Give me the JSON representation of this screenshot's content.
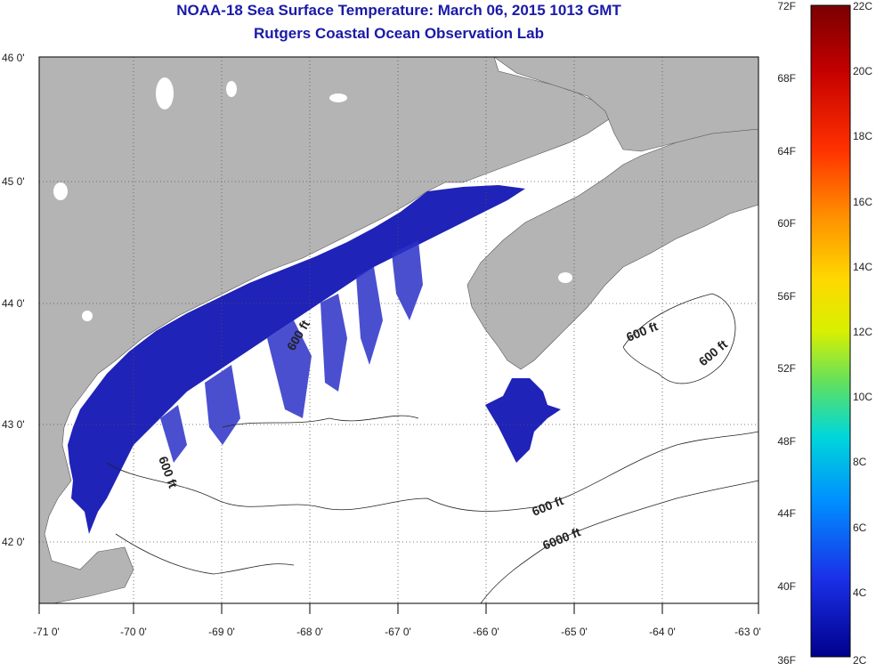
{
  "title_line1": "NOAA-18 Sea Surface Temperature:  March 06, 2015 1013 GMT",
  "title_line2": "Rutgers Coastal Ocean Observation Lab",
  "lat_ticks": [
    "46 0'",
    "45 0'",
    "44 0'",
    "43 0'",
    "42 0'"
  ],
  "lon_ticks": [
    "-71 0'",
    "-70 0'",
    "-69 0'",
    "-68 0'",
    "-67 0'",
    "-66 0'",
    "-65 0'",
    "-64 0'",
    "-63 0'"
  ],
  "contour_labels": [
    "600 ft",
    "600 ft",
    "600 ft",
    "6000 ft",
    "600 ft",
    "600 ft"
  ],
  "colorbar": {
    "fahrenheit_labels": [
      "72F",
      "68F",
      "64F",
      "60F",
      "56F",
      "52F",
      "48F",
      "44F",
      "40F",
      "36F"
    ],
    "celsius_labels": [
      "22C",
      "20C",
      "18C",
      "16C",
      "14C",
      "12C",
      "10C",
      "8C",
      "6C",
      "4C",
      "2C"
    ]
  },
  "colors": {
    "land": "#b4b4b4",
    "ocean_no_data": "#ffffff",
    "sst_cold": "#1a1ab4",
    "title": "#1a1aa8"
  }
}
